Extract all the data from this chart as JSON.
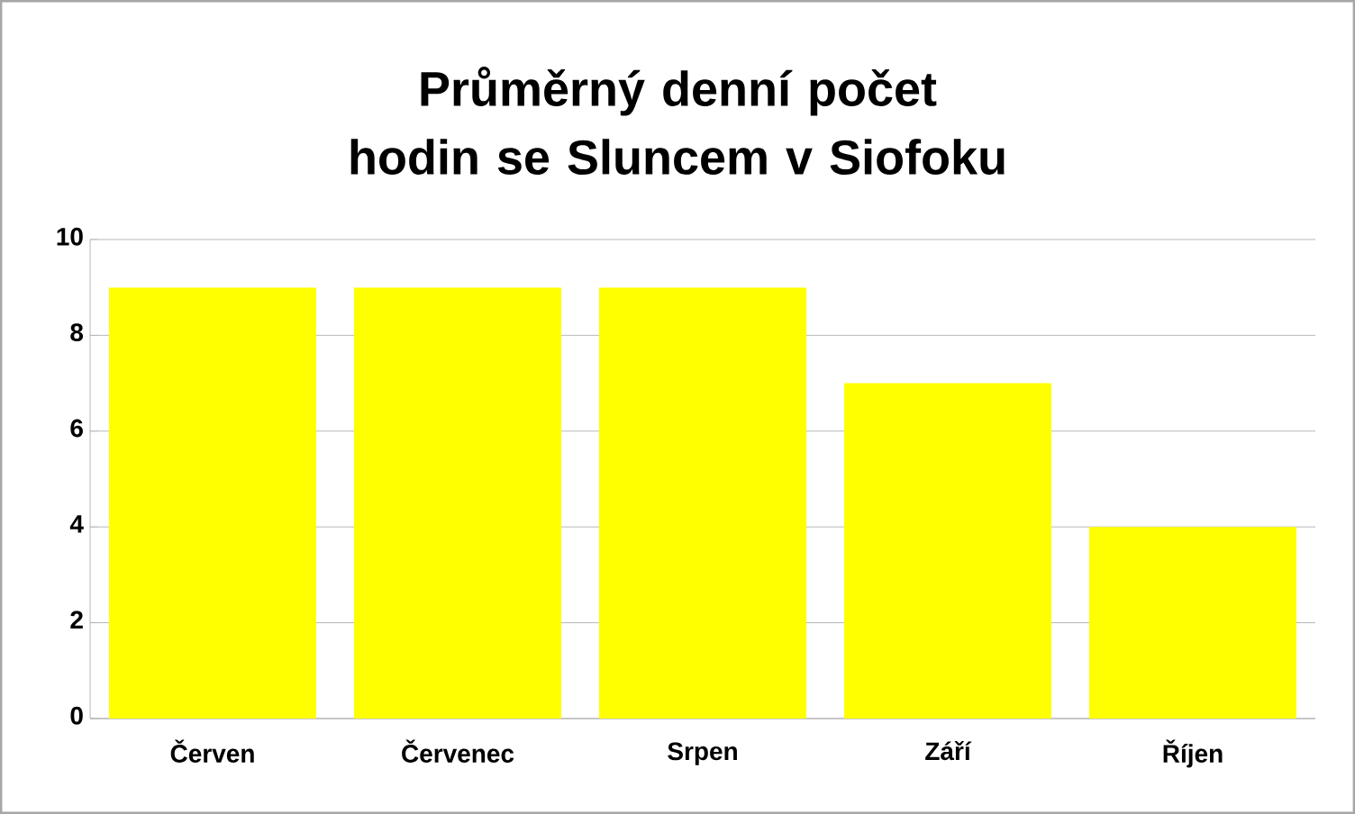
{
  "chart_data": {
    "type": "bar",
    "title": "Průměrný denní počet hodin se Sluncem v Siofoku",
    "categories": [
      "Červen",
      "Červenec",
      "Srpen",
      "Září",
      "Říjen"
    ],
    "values": [
      9,
      9,
      9,
      7,
      4
    ],
    "color": "#ffff00",
    "ylim": [
      0,
      10
    ],
    "yticks": [
      0,
      2,
      4,
      6,
      8,
      10
    ],
    "grid": "y"
  }
}
